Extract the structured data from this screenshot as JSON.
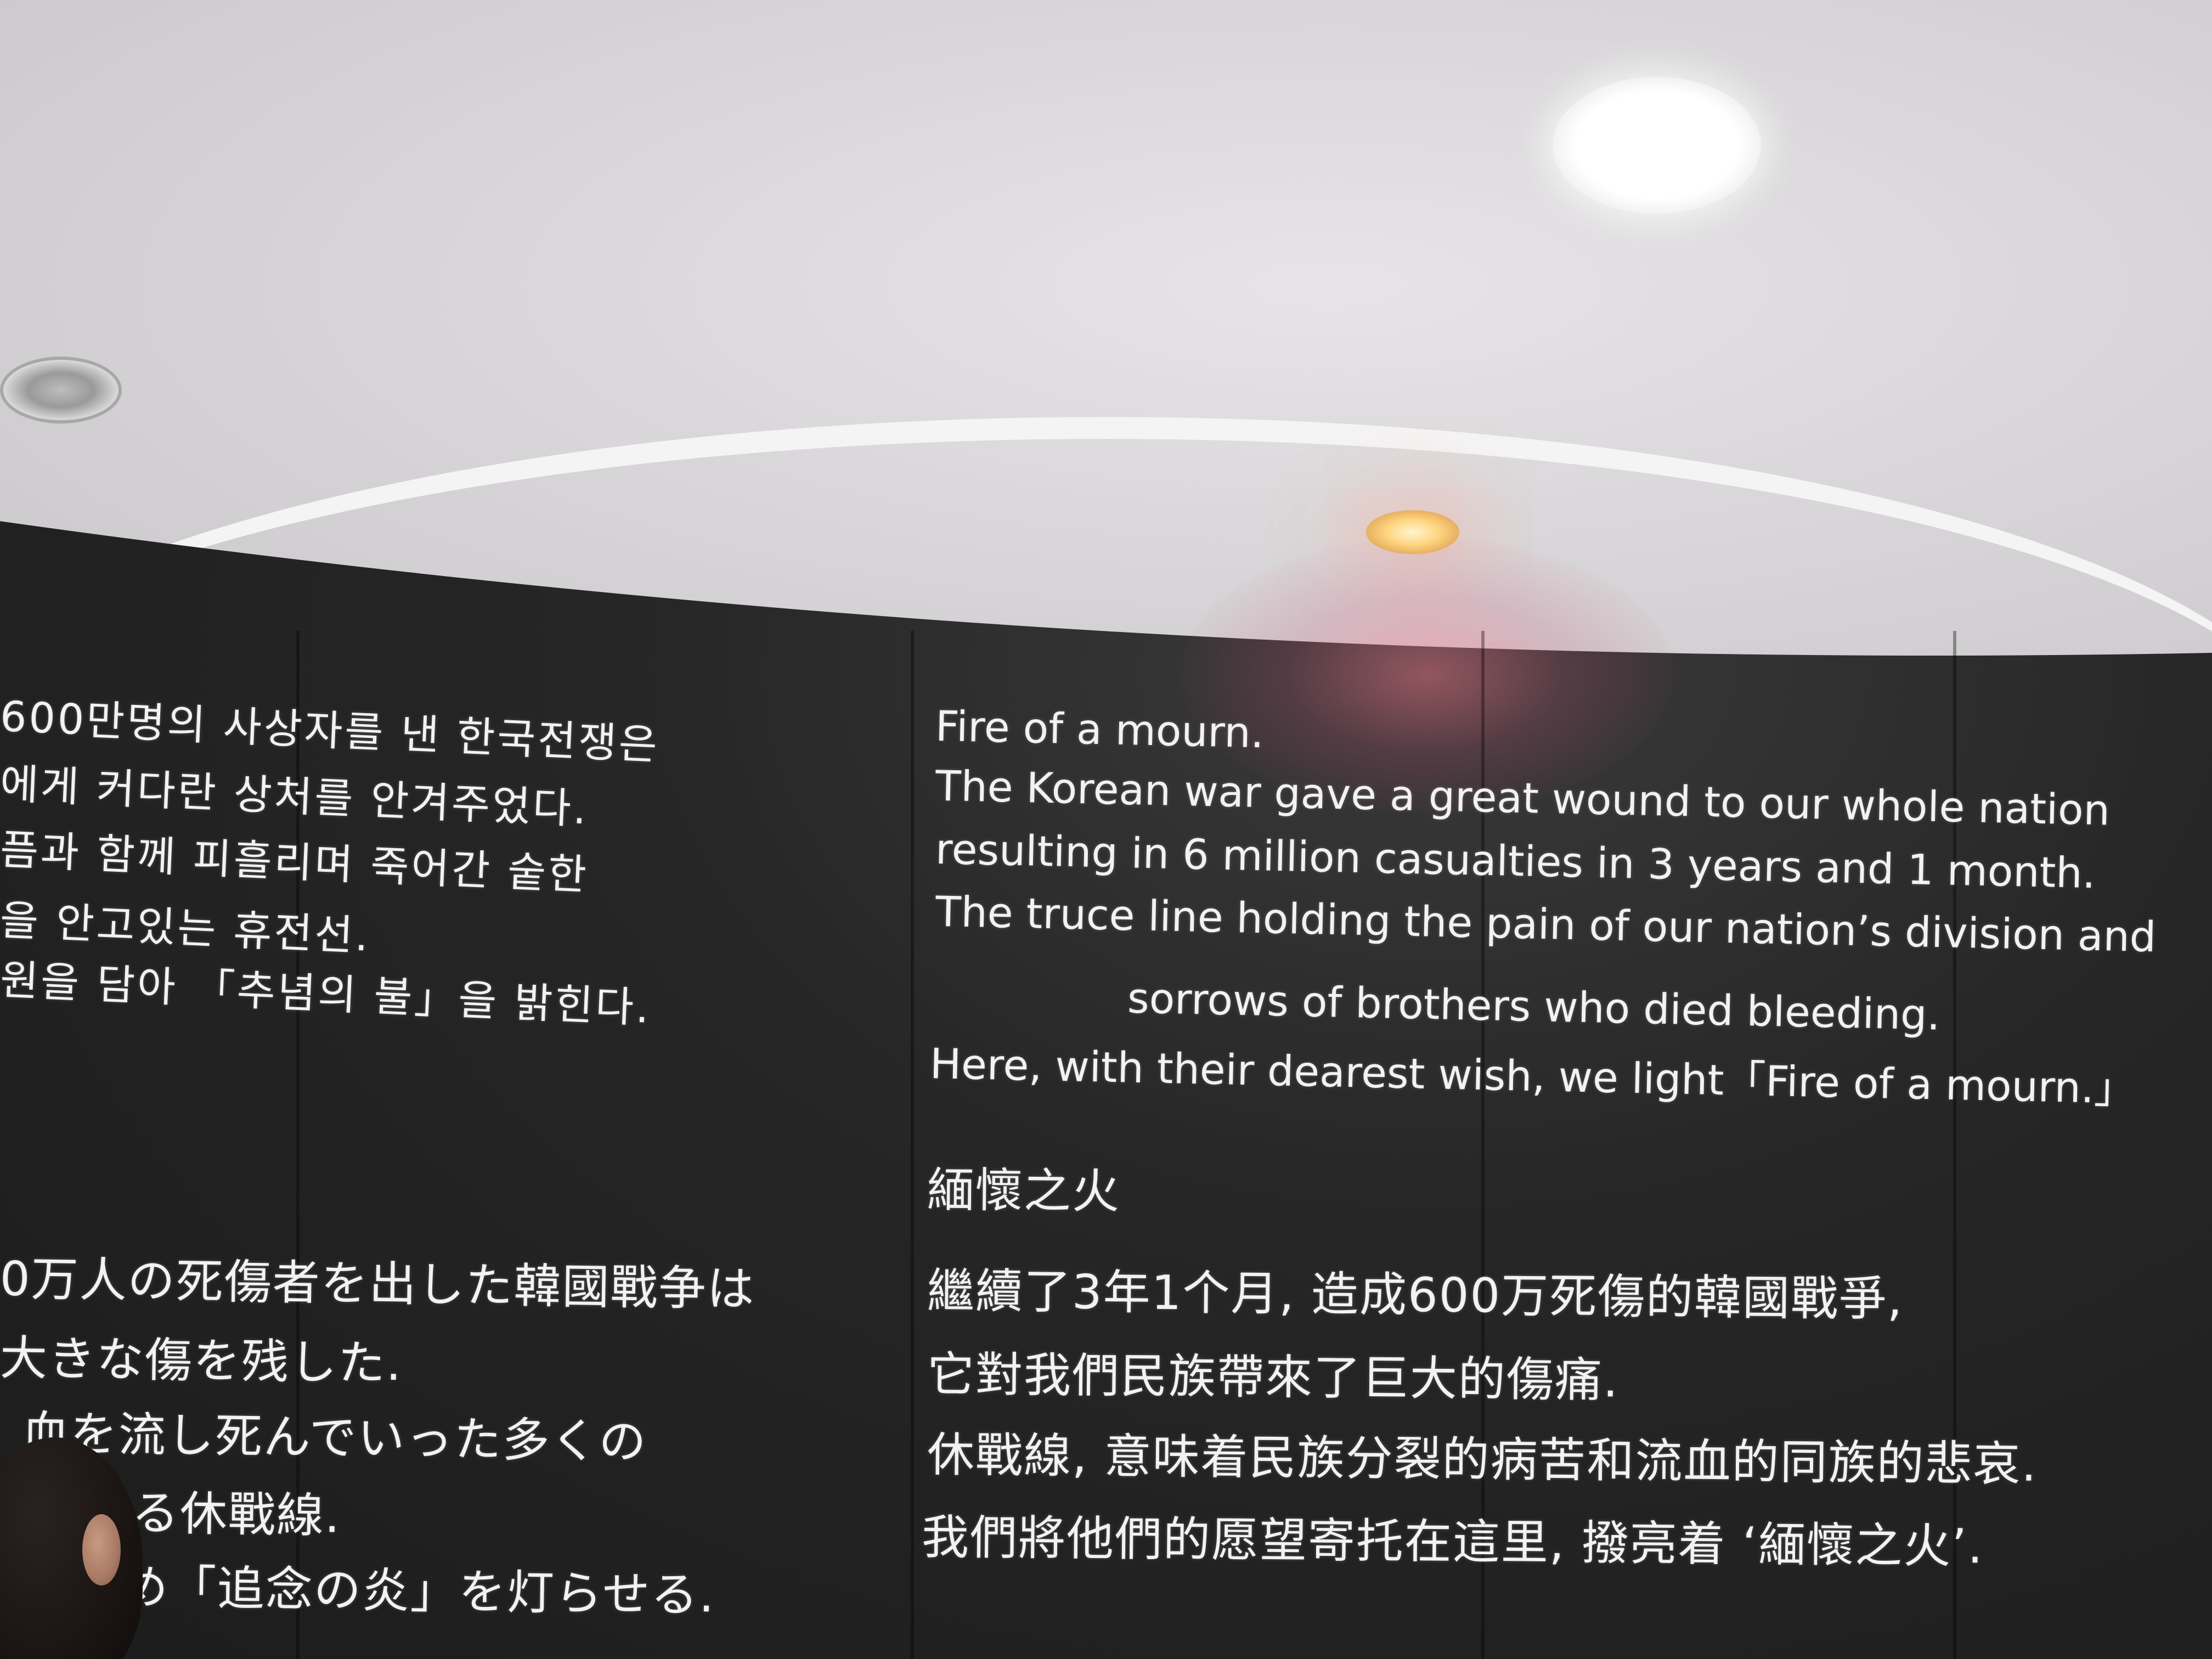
{
  "korean": {
    "lines": [
      "600만명의 사상자를 낸 한국전쟁은",
      "에게 커다란 상처를 안겨주었다.",
      "픔과 함께 피흘리며 죽어간 숱한",
      "을 안고있는 휴전선.",
      "원을 담아 「추념의 불」을 밝힌다."
    ]
  },
  "english": {
    "title": "Fire of a mourn.",
    "lines": [
      "The Korean war gave a great wound to our whole nation",
      "resulting in 6 million casualties in 3 years and 1 month.",
      "The truce line holding the pain of our nation’s division and",
      "sorrows of brothers who died bleeding.",
      "Here, with their dearest wish, we light「Fire of a mourn.」"
    ]
  },
  "chinese": {
    "title": "緬懷之火",
    "lines": [
      "繼續了3年1个月, 造成600万死傷的韓國戰爭,",
      "它對我們民族帶來了巨大的傷痛.",
      "休戰線, 意味着民族分裂的病苦和流血的同族的悲哀.",
      "我們將他們的愿望寄托在這里, 撥亮着 ‘緬懷之火’."
    ]
  },
  "japanese": {
    "lines": [
      "0万人の死傷者を出した韓國戰争は",
      "大きな傷を残した.",
      "血を流し死んでいった多くの",
      "る休戰線.",
      "め「追念の炎」を灯らせる."
    ]
  }
}
